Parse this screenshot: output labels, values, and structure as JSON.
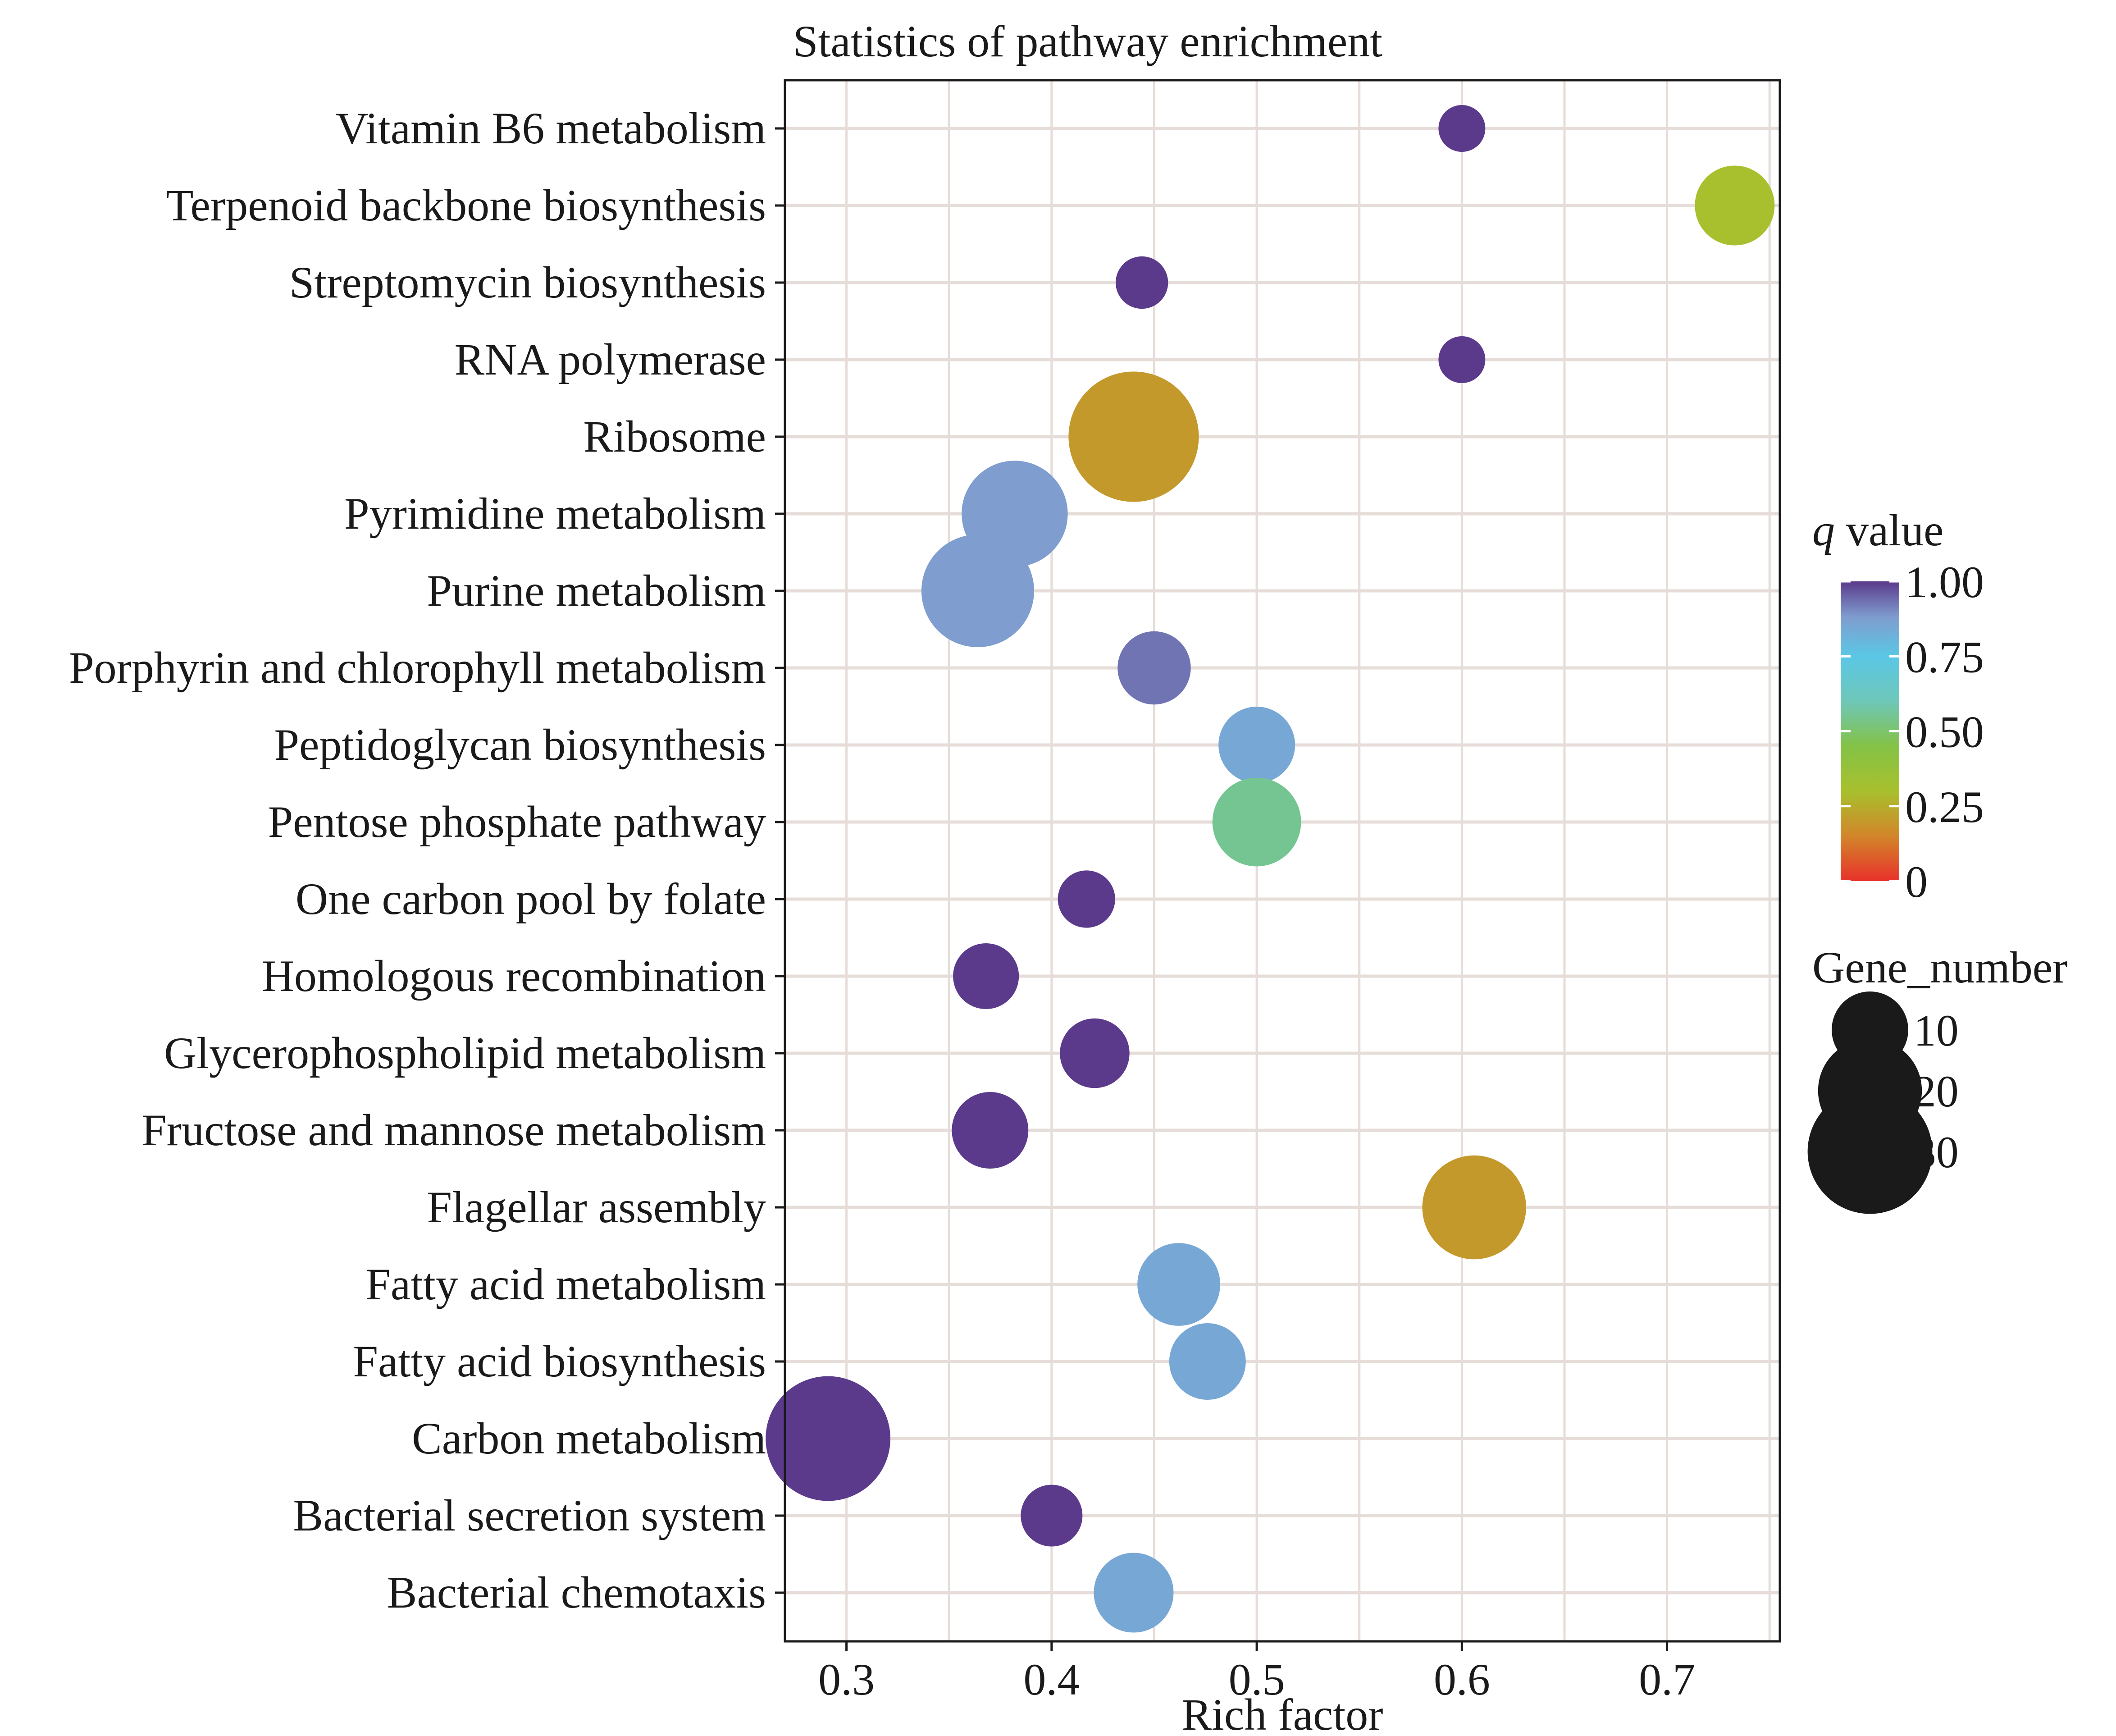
{
  "chart_data": {
    "type": "scatter",
    "title": "Statistics of pathway enrichment",
    "xlabel": "Rich factor",
    "ylabel": "",
    "xlim": [
      0.27,
      0.755
    ],
    "xticks": [
      "0.3",
      "0.4",
      "0.5",
      "0.6",
      "0.7"
    ],
    "xtick_values": [
      0.3,
      0.4,
      0.5,
      0.6,
      0.7
    ],
    "grid": true,
    "legend_placement": "right",
    "categories": [
      "Vitamin B6 metabolism",
      "Terpenoid backbone biosynthesis",
      "Streptomycin biosynthesis",
      "RNA polymerase",
      "Ribosome",
      "Pyrimidine metabolism",
      "Purine metabolism",
      "Porphyrin and chlorophyll metabolism",
      "Peptidoglycan biosynthesis",
      "Pentose phosphate pathway",
      "One carbon pool by folate",
      "Homologous recombination",
      "Glycerophospholipid metabolism",
      "Fructose and mannose metabolism",
      "Flagellar assembly",
      "Fatty acid metabolism",
      "Fatty acid biosynthesis",
      "Carbon metabolism",
      "Bacterial secretion system",
      "Bacterial chemotaxis"
    ],
    "points": [
      {
        "category": "Vitamin B6 metabolism",
        "rich_factor": 0.6,
        "gene_number": 3,
        "q_value": 1.0
      },
      {
        "category": "Terpenoid backbone biosynthesis",
        "rich_factor": 0.733,
        "gene_number": 11,
        "q_value": 0.3
      },
      {
        "category": "Streptomycin biosynthesis",
        "rich_factor": 0.444,
        "gene_number": 4,
        "q_value": 1.0
      },
      {
        "category": "RNA polymerase",
        "rich_factor": 0.6,
        "gene_number": 3,
        "q_value": 1.0
      },
      {
        "category": "Ribosome",
        "rich_factor": 0.44,
        "gene_number": 33,
        "q_value": 0.2
      },
      {
        "category": "Pyrimidine metabolism",
        "rich_factor": 0.382,
        "gene_number": 21,
        "q_value": 0.88
      },
      {
        "category": "Purine metabolism",
        "rich_factor": 0.364,
        "gene_number": 24,
        "q_value": 0.88
      },
      {
        "category": "Porphyrin and chlorophyll metabolism",
        "rich_factor": 0.45,
        "gene_number": 9,
        "q_value": 0.93
      },
      {
        "category": "Peptidoglycan biosynthesis",
        "rich_factor": 0.5,
        "gene_number": 10,
        "q_value": 0.85
      },
      {
        "category": "Pentose phosphate pathway",
        "rich_factor": 0.5,
        "gene_number": 14,
        "q_value": 0.55
      },
      {
        "category": "One carbon pool by folate",
        "rich_factor": 0.417,
        "gene_number": 5,
        "q_value": 1.0
      },
      {
        "category": "Homologous recombination",
        "rich_factor": 0.368,
        "gene_number": 7,
        "q_value": 1.0
      },
      {
        "category": "Glycerophospholipid metabolism",
        "rich_factor": 0.421,
        "gene_number": 8,
        "q_value": 1.0
      },
      {
        "category": "Fructose and mannose metabolism",
        "rich_factor": 0.37,
        "gene_number": 10,
        "q_value": 1.0
      },
      {
        "category": "Flagellar assembly",
        "rich_factor": 0.606,
        "gene_number": 20,
        "q_value": 0.2
      },
      {
        "category": "Fatty acid metabolism",
        "rich_factor": 0.462,
        "gene_number": 12,
        "q_value": 0.85
      },
      {
        "category": "Fatty acid biosynthesis",
        "rich_factor": 0.476,
        "gene_number": 10,
        "q_value": 0.85
      },
      {
        "category": "Carbon metabolism",
        "rich_factor": 0.291,
        "gene_number": 30,
        "q_value": 1.0
      },
      {
        "category": "Bacterial secretion system",
        "rich_factor": 0.4,
        "gene_number": 6,
        "q_value": 1.0
      },
      {
        "category": "Bacterial chemotaxis",
        "rich_factor": 0.44,
        "gene_number": 11,
        "q_value": 0.85
      }
    ],
    "color_legend": {
      "title_italic": "q",
      "title_rest": " value",
      "ticks": [
        "1.00",
        "0.75",
        "0.50",
        "0.25",
        "0"
      ],
      "tick_values": [
        1.0,
        0.75,
        0.5,
        0.25,
        0.0
      ],
      "gradient_stops": [
        {
          "value": 0.0,
          "color": "#e8312b"
        },
        {
          "value": 0.15,
          "color": "#d2862a"
        },
        {
          "value": 0.3,
          "color": "#a8c02d"
        },
        {
          "value": 0.45,
          "color": "#84c246"
        },
        {
          "value": 0.6,
          "color": "#6ec7b8"
        },
        {
          "value": 0.75,
          "color": "#5bc7e6"
        },
        {
          "value": 0.88,
          "color": "#7f9dce"
        },
        {
          "value": 1.0,
          "color": "#5b3a8c"
        }
      ]
    },
    "size_legend": {
      "title": "Gene_number",
      "entries": [
        {
          "value": 10,
          "label": ": 10"
        },
        {
          "value": 20,
          "label": ": 20"
        },
        {
          "value": 30,
          "label": ": 30"
        }
      ]
    },
    "colors": {
      "grid": "#e6dcd8",
      "frame": "#1a1a1a",
      "size_legend_dot": "#1a1a1a"
    }
  }
}
